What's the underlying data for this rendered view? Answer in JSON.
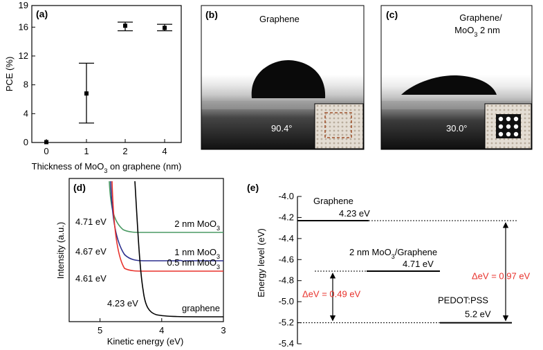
{
  "panels": {
    "a": {
      "label": "(a)"
    },
    "b": {
      "label": "(b)",
      "title": "Graphene",
      "angle": "90.4°"
    },
    "c": {
      "label": "(c)",
      "title_line1": "Graphene/",
      "title_line2_pre": "MoO",
      "title_line2_sub": "3",
      "title_line2_post": " 2 nm",
      "angle": "30.0°"
    },
    "d": {
      "label": "(d)"
    },
    "e": {
      "label": "(e)"
    }
  },
  "chart_data": [
    {
      "type": "scatter",
      "panel": "a",
      "xlabel_pre": "Thickness of MoO",
      "xlabel_sub": "3",
      "xlabel_post": " on graphene (nm)",
      "ylabel": "PCE (%)",
      "categories": [
        "0",
        "1",
        "2",
        "4"
      ],
      "ylim": [
        0,
        19
      ],
      "yticks": [
        "0",
        "4",
        "8",
        "12",
        "16",
        "19"
      ],
      "ytick_values": [
        0,
        4,
        8,
        12,
        16,
        19
      ],
      "points": [
        {
          "x": "0",
          "y": 0.05,
          "err_low": 0.05,
          "err_high": 0.05
        },
        {
          "x": "1",
          "y": 6.8,
          "err_low": 2.7,
          "err_high": 11.0
        },
        {
          "x": "2",
          "y": 16.2,
          "err_low": 15.5,
          "err_high": 16.7
        },
        {
          "x": "4",
          "y": 15.9,
          "err_low": 15.5,
          "err_high": 16.4
        }
      ]
    },
    {
      "type": "line",
      "panel": "d",
      "xlabel": "Kinetic energy (eV)",
      "ylabel": "Intensity (a.u.)",
      "xlim": [
        5.5,
        3
      ],
      "xticks": [
        "5",
        "4",
        "3"
      ],
      "xtick_values": [
        5,
        4,
        3
      ],
      "series": [
        {
          "name_pre": "2 nm MoO",
          "name_sub": "3",
          "onset": "4.71 eV",
          "color": "#4a9a63"
        },
        {
          "name_pre": "1 nm MoO",
          "name_sub": "3",
          "onset": "4.67 eV",
          "color": "#2b2f8e"
        },
        {
          "name_pre": "0.5 nm MoO",
          "name_sub": "3",
          "onset": "4.61 eV",
          "color": "#e8312b"
        },
        {
          "name_pre": "graphene",
          "name_sub": "",
          "onset": "4.23 eV",
          "color": "#000000"
        }
      ]
    },
    {
      "type": "diagram",
      "panel": "e",
      "ylabel": "Energy level (eV)",
      "ylim": [
        -5.4,
        -4.0
      ],
      "yticks": [
        "-4.0",
        "-4.2",
        "-4.4",
        "-4.6",
        "-4.8",
        "-5.0",
        "-5.2",
        "-5.4"
      ],
      "ytick_values": [
        -4.0,
        -4.2,
        -4.4,
        -4.6,
        -4.8,
        -5.0,
        -5.2,
        -5.4
      ],
      "levels": [
        {
          "name": "Graphene",
          "value_label": "4.23 eV",
          "value": -4.23
        },
        {
          "name_pre": "2 nm MoO",
          "name_sub": "3",
          "name_post": "/Graphene",
          "value_label": "4.71 eV",
          "value": -4.71
        },
        {
          "name": "PEDOT:PSS",
          "value_label": "5.2 eV",
          "value": -5.2
        }
      ],
      "deltas": [
        {
          "label": "ΔeV = 0.49 eV",
          "from": -4.71,
          "to": -5.2,
          "color": "#e8312b"
        },
        {
          "label": "ΔeV = 0.97 eV",
          "from": -4.23,
          "to": -5.2,
          "color": "#e8312b"
        }
      ]
    }
  ]
}
